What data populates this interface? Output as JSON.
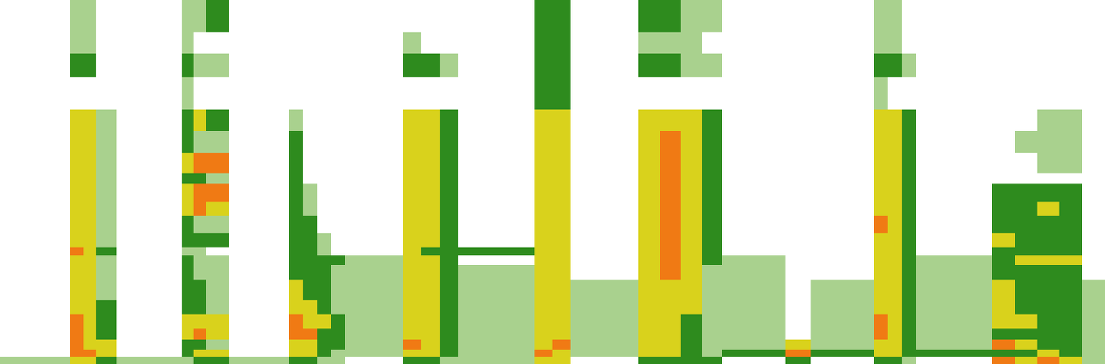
{
  "chart_data": {
    "type": "heatmap",
    "tick_labels": false,
    "grid": false,
    "colors": [
      "#ffffff",
      "#a9d18e",
      "#2e8b1e",
      "#d9d21c",
      "#f07a14"
    ],
    "zlim": [
      0,
      4
    ],
    "xlim": [
      0,
      1568
    ],
    "ylim": [
      0,
      516
    ],
    "x": [
      0,
      100,
      118,
      136,
      165,
      258,
      275,
      292,
      325,
      410,
      430,
      450,
      470,
      490,
      572,
      598,
      624,
      650,
      758,
      784,
      810,
      906,
      936,
      966,
      996,
      1025,
      1115,
      1150,
      1240,
      1260,
      1280,
      1300,
      1408,
      1440,
      1472,
      1504,
      1535,
      1568
    ],
    "y": [
      0,
      10,
      20,
      35,
      50,
      70,
      90,
      120,
      140,
      154,
      165,
      185,
      210,
      230,
      256,
      270,
      300,
      330,
      361,
      406,
      440,
      470,
      516
    ],
    "cells": [
      [
        1,
        0,
        0,
        0,
        0,
        0,
        0,
        0,
        0,
        0,
        0,
        0,
        0,
        0,
        0,
        0,
        0,
        0,
        0,
        0,
        0,
        0
      ],
      [
        3,
        4,
        4,
        4,
        4,
        3,
        3,
        3,
        3,
        4,
        3,
        3,
        3,
        3,
        3,
        3,
        3,
        3,
        0,
        2,
        1,
        1
      ],
      [
        3,
        4,
        3,
        3,
        3,
        3,
        3,
        3,
        3,
        3,
        3,
        3,
        3,
        3,
        3,
        3,
        3,
        3,
        0,
        2,
        1,
        1
      ],
      [
        2,
        3,
        3,
        2,
        2,
        2,
        1,
        1,
        1,
        2,
        1,
        1,
        1,
        1,
        1,
        1,
        1,
        1,
        0,
        0,
        0,
        0
      ],
      [
        1,
        0,
        0,
        0,
        0,
        0,
        0,
        0,
        0,
        0,
        0,
        0,
        0,
        0,
        0,
        0,
        0,
        0,
        0,
        0,
        0,
        0
      ],
      [
        1,
        2,
        2,
        3,
        3,
        2,
        2,
        2,
        2,
        1,
        2,
        2,
        3,
        3,
        2,
        3,
        2,
        2,
        1,
        2,
        1,
        1
      ],
      [
        2,
        3,
        2,
        4,
        3,
        2,
        2,
        1,
        1,
        1,
        2,
        1,
        4,
        4,
        2,
        4,
        1,
        3,
        0,
        1,
        0,
        1
      ],
      [
        2,
        3,
        1,
        3,
        3,
        1,
        1,
        1,
        1,
        0,
        2,
        1,
        3,
        4,
        1,
        4,
        1,
        2,
        0,
        1,
        0,
        2
      ],
      [
        1,
        0,
        0,
        0,
        0,
        0,
        0,
        0,
        0,
        0,
        0,
        0,
        0,
        0,
        0,
        0,
        0,
        0,
        0,
        0,
        0,
        0
      ],
      [
        2,
        3,
        3,
        4,
        4,
        3,
        3,
        2,
        2,
        2,
        2,
        2,
        2,
        2,
        2,
        2,
        2,
        1,
        0,
        0,
        0,
        0
      ],
      [
        2,
        3,
        3,
        4,
        3,
        3,
        2,
        2,
        2,
        2,
        2,
        2,
        1,
        1,
        0,
        0,
        0,
        0,
        0,
        0,
        0,
        0
      ],
      [
        1,
        2,
        2,
        2,
        3,
        2,
        2,
        2,
        2,
        1,
        1,
        0,
        0,
        0,
        0,
        0,
        0,
        0,
        0,
        0,
        0,
        0
      ],
      [
        1,
        1,
        2,
        2,
        2,
        1,
        1,
        1,
        2,
        0,
        0,
        0,
        0,
        0,
        0,
        0,
        0,
        0,
        0,
        0,
        0,
        0
      ],
      [
        0,
        1,
        1,
        1,
        1,
        1,
        1,
        1,
        1,
        0,
        0,
        0,
        0,
        0,
        0,
        0,
        0,
        0,
        0,
        0,
        0,
        0
      ],
      [
        2,
        3,
        4,
        3,
        3,
        3,
        3,
        3,
        3,
        3,
        3,
        3,
        3,
        3,
        3,
        3,
        3,
        3,
        0,
        2,
        1,
        0
      ],
      [
        2,
        3,
        3,
        3,
        3,
        3,
        3,
        3,
        3,
        2,
        3,
        3,
        3,
        3,
        3,
        3,
        3,
        3,
        0,
        2,
        0,
        0
      ],
      [
        1,
        2,
        2,
        2,
        2,
        2,
        2,
        2,
        2,
        2,
        2,
        2,
        2,
        2,
        2,
        2,
        2,
        2,
        0,
        1,
        0,
        0
      ],
      [
        1,
        1,
        1,
        1,
        1,
        1,
        1,
        1,
        0,
        2,
        0,
        0,
        0,
        0,
        0,
        0,
        0,
        0,
        0,
        0,
        0,
        0
      ],
      [
        3,
        4,
        3,
        3,
        3,
        3,
        3,
        3,
        3,
        3,
        3,
        3,
        3,
        3,
        3,
        3,
        3,
        3,
        2,
        2,
        2,
        2
      ],
      [
        3,
        3,
        4,
        3,
        3,
        3,
        3,
        3,
        3,
        3,
        3,
        3,
        3,
        3,
        3,
        3,
        3,
        3,
        2,
        2,
        2,
        2
      ],
      [
        0,
        1,
        1,
        1,
        1,
        1,
        1,
        0,
        0,
        0,
        0,
        0,
        0,
        0,
        0,
        0,
        0,
        0,
        0,
        0,
        0,
        0
      ],
      [
        2,
        3,
        3,
        3,
        3,
        3,
        3,
        3,
        3,
        3,
        3,
        3,
        3,
        3,
        3,
        3,
        3,
        3,
        0,
        2,
        1,
        2
      ],
      [
        2,
        3,
        3,
        3,
        3,
        3,
        3,
        4,
        4,
        4,
        4,
        4,
        4,
        4,
        4,
        4,
        4,
        3,
        0,
        2,
        1,
        2
      ],
      [
        2,
        2,
        2,
        2,
        2,
        3,
        3,
        3,
        3,
        3,
        3,
        3,
        3,
        3,
        3,
        3,
        3,
        3,
        0,
        1,
        1,
        1
      ],
      [
        2,
        1,
        1,
        1,
        1,
        1,
        1,
        1,
        2,
        2,
        2,
        2,
        2,
        2,
        2,
        2,
        2,
        2,
        0,
        1,
        0,
        1
      ],
      [
        0,
        2,
        1,
        1,
        1,
        1,
        1,
        1,
        1,
        0,
        0,
        0,
        0,
        0,
        0,
        0,
        0,
        0,
        0,
        0,
        0,
        0
      ],
      [
        2,
        4,
        3,
        0,
        0,
        0,
        0,
        0,
        0,
        0,
        0,
        0,
        0,
        0,
        0,
        0,
        0,
        0,
        0,
        0,
        0,
        0
      ],
      [
        0,
        2,
        1,
        1,
        1,
        1,
        1,
        0,
        0,
        0,
        0,
        0,
        0,
        0,
        0,
        0,
        0,
        0,
        0,
        0,
        0,
        0
      ],
      [
        2,
        3,
        3,
        4,
        4,
        3,
        3,
        3,
        3,
        3,
        3,
        4,
        3,
        3,
        3,
        3,
        3,
        3,
        1,
        2,
        1,
        1
      ],
      [
        2,
        3,
        3,
        3,
        3,
        3,
        3,
        3,
        3,
        3,
        3,
        3,
        3,
        3,
        3,
        3,
        3,
        3,
        0,
        2,
        1,
        1
      ],
      [
        1,
        2,
        2,
        2,
        2,
        2,
        2,
        2,
        2,
        2,
        2,
        2,
        2,
        2,
        2,
        2,
        2,
        2,
        0,
        1,
        0,
        0
      ],
      [
        0,
        2,
        1,
        1,
        1,
        1,
        1,
        1,
        1,
        0,
        0,
        0,
        0,
        0,
        0,
        0,
        0,
        0,
        0,
        0,
        0,
        0
      ],
      [
        4,
        2,
        4,
        2,
        3,
        3,
        3,
        2,
        2,
        2,
        3,
        2,
        2,
        2,
        0,
        0,
        0,
        0,
        0,
        0,
        0,
        0
      ],
      [
        3,
        2,
        3,
        2,
        3,
        2,
        2,
        2,
        3,
        2,
        2,
        2,
        2,
        2,
        0,
        0,
        1,
        0,
        0,
        0,
        0,
        0
      ],
      [
        4,
        3,
        2,
        2,
        2,
        2,
        2,
        2,
        3,
        2,
        2,
        2,
        3,
        2,
        0,
        1,
        1,
        1,
        0,
        0,
        0,
        0
      ],
      [
        3,
        2,
        2,
        2,
        2,
        2,
        2,
        2,
        3,
        2,
        2,
        2,
        2,
        2,
        0,
        1,
        1,
        1,
        0,
        0,
        0,
        0
      ],
      [
        1,
        1,
        1,
        1,
        1,
        1,
        1,
        0,
        0,
        0,
        0,
        0,
        0,
        0,
        0,
        0,
        0,
        0,
        0,
        0,
        0,
        0
      ]
    ]
  }
}
